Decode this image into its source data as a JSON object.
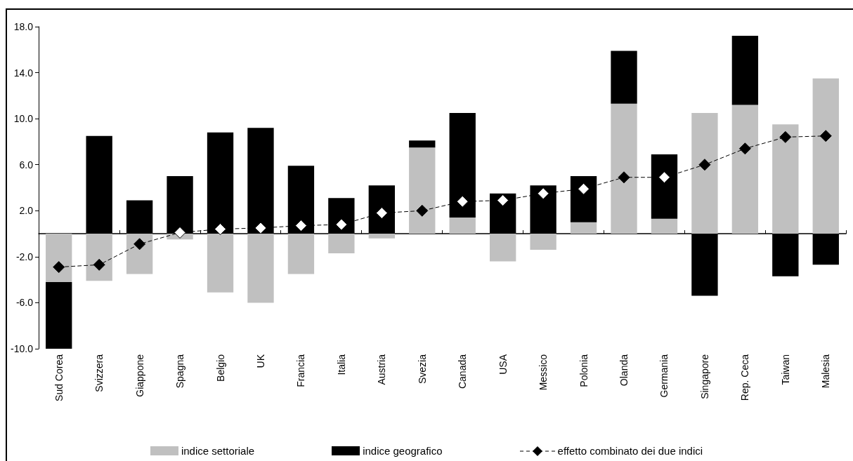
{
  "chart_data": {
    "type": "bar",
    "stacked": true,
    "categories": [
      "Sud Corea",
      "Svizzera",
      "Giappone",
      "Spagna",
      "Belgio",
      "UK",
      "Francia",
      "Italia",
      "Austria",
      "Svezia",
      "Canada",
      "USA",
      "Messico",
      "Polonia",
      "Olanda",
      "Germania",
      "Singapore",
      "Rep. Ceca",
      "Taiwan",
      "Malesia"
    ],
    "series": [
      {
        "name": "indice settoriale",
        "color": "#c0c0c0",
        "values": [
          -4.2,
          -4.1,
          -3.5,
          -0.5,
          -5.1,
          -6.0,
          -3.5,
          -1.7,
          -0.4,
          7.5,
          1.4,
          -2.4,
          -1.4,
          1.0,
          11.3,
          1.3,
          10.5,
          11.2,
          9.5,
          13.5
        ]
      },
      {
        "name": "indice geografico",
        "color": "#000000",
        "values": [
          -5.8,
          8.5,
          2.9,
          5.0,
          8.8,
          9.2,
          5.9,
          3.1,
          4.2,
          0.6,
          9.1,
          3.5,
          4.2,
          4.0,
          4.6,
          5.6,
          -5.4,
          6.0,
          -3.7,
          -2.7
        ]
      },
      {
        "name": "effetto combinato dei due indici",
        "type": "line",
        "color": "#000000",
        "colors": [
          "#000000",
          "#000000",
          "#000000",
          "#ffffff",
          "#ffffff",
          "#ffffff",
          "#ffffff",
          "#ffffff",
          "#ffffff",
          "#000000",
          "#ffffff",
          "#ffffff",
          "#ffffff",
          "#ffffff",
          "#000000",
          "#ffffff",
          "#000000",
          "#000000",
          "#000000",
          "#000000"
        ],
        "values": [
          -2.9,
          -2.7,
          -0.9,
          0.1,
          0.4,
          0.5,
          0.7,
          0.8,
          1.8,
          2.0,
          2.8,
          2.9,
          3.5,
          3.9,
          4.9,
          4.9,
          6.0,
          7.4,
          8.4,
          8.5
        ]
      }
    ],
    "ylim": [
      -10,
      18
    ],
    "yticks": [
      {
        "value": -10,
        "label": "-10.0"
      },
      {
        "value": -6,
        "label": "-6.0"
      },
      {
        "value": -2,
        "label": "-2.0"
      },
      {
        "value": 2,
        "label": "2.0"
      },
      {
        "value": 6,
        "label": "6.0"
      },
      {
        "value": 10,
        "label": "10.0"
      },
      {
        "value": 14,
        "label": "14.0"
      },
      {
        "value": 18,
        "label": "18.0"
      }
    ],
    "grid": false,
    "legend": "bottom",
    "marker": "diamond",
    "line_style": "dashed"
  }
}
